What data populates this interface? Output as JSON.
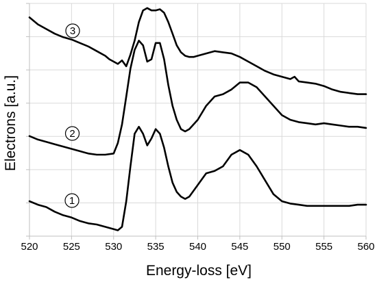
{
  "chart_data": {
    "type": "line",
    "xlabel": "Energy-loss [eV]",
    "ylabel": "Electrons [a.u.]",
    "xlim": [
      520,
      560
    ],
    "xticks": [
      520,
      525,
      530,
      535,
      540,
      545,
      550,
      555,
      560
    ],
    "ylim": [
      0,
      10
    ],
    "y_tick_labels": "none",
    "grid": true,
    "legend": "none",
    "series": [
      {
        "marker": "③",
        "x": [
          520.0,
          521.0,
          522.0,
          523.0,
          524.0,
          525.0,
          526.0,
          527.0,
          528.0,
          529.0,
          529.5,
          530.0,
          530.5,
          531.0,
          531.5,
          532.0,
          532.5,
          533.0,
          533.5,
          534.0,
          534.5,
          535.0,
          535.5,
          536.0,
          536.5,
          537.0,
          537.5,
          538.0,
          538.5,
          539.0,
          539.5,
          540.0,
          541.0,
          542.0,
          543.0,
          544.0,
          545.0,
          546.0,
          547.0,
          548.0,
          549.0,
          550.0,
          551.0,
          551.5,
          552.0,
          553.0,
          554.0,
          555.0,
          556.0,
          557.0,
          558.0,
          559.0,
          560.0
        ],
        "y": [
          9.4,
          9.1,
          8.9,
          8.7,
          8.55,
          8.45,
          8.3,
          8.15,
          7.95,
          7.75,
          7.6,
          7.5,
          7.4,
          7.55,
          7.3,
          7.8,
          8.4,
          9.2,
          9.7,
          9.8,
          9.7,
          9.7,
          9.75,
          9.6,
          9.2,
          8.7,
          8.2,
          7.9,
          7.75,
          7.7,
          7.7,
          7.75,
          7.85,
          7.95,
          7.9,
          7.85,
          7.7,
          7.5,
          7.3,
          7.1,
          6.95,
          6.85,
          6.75,
          6.85,
          6.65,
          6.6,
          6.55,
          6.45,
          6.3,
          6.2,
          6.15,
          6.1,
          6.1
        ]
      },
      {
        "marker": "②",
        "x": [
          520.0,
          521.0,
          522.0,
          523.0,
          524.0,
          525.0,
          526.0,
          527.0,
          528.0,
          529.0,
          530.0,
          530.5,
          531.0,
          531.5,
          532.0,
          532.5,
          533.0,
          533.5,
          534.0,
          534.5,
          535.0,
          535.5,
          536.0,
          536.5,
          537.0,
          537.5,
          538.0,
          538.5,
          539.0,
          540.0,
          541.0,
          542.0,
          543.0,
          544.0,
          545.0,
          546.0,
          547.0,
          548.0,
          549.0,
          550.0,
          551.0,
          552.0,
          553.0,
          554.0,
          555.0,
          556.0,
          557.0,
          558.0,
          559.0,
          560.0
        ],
        "y": [
          4.3,
          4.15,
          4.05,
          3.95,
          3.85,
          3.75,
          3.65,
          3.55,
          3.5,
          3.5,
          3.55,
          4.0,
          4.8,
          6.0,
          7.2,
          8.0,
          8.4,
          8.2,
          7.5,
          7.6,
          8.3,
          8.3,
          7.6,
          6.5,
          5.6,
          5.0,
          4.6,
          4.5,
          4.6,
          5.0,
          5.6,
          6.0,
          6.1,
          6.3,
          6.6,
          6.6,
          6.4,
          6.0,
          5.6,
          5.2,
          5.0,
          4.9,
          4.85,
          4.8,
          4.85,
          4.8,
          4.75,
          4.7,
          4.7,
          4.65
        ]
      },
      {
        "marker": "①",
        "x": [
          520.0,
          521.0,
          522.0,
          523.0,
          524.0,
          525.0,
          526.0,
          527.0,
          528.0,
          529.0,
          530.0,
          530.5,
          531.0,
          531.5,
          532.0,
          532.5,
          533.0,
          533.5,
          534.0,
          534.5,
          535.0,
          535.5,
          536.0,
          536.5,
          537.0,
          537.5,
          538.0,
          538.5,
          539.0,
          540.0,
          541.0,
          542.0,
          543.0,
          544.0,
          545.0,
          546.0,
          547.0,
          548.0,
          549.0,
          550.0,
          551.0,
          552.0,
          553.0,
          554.0,
          555.0,
          556.0,
          557.0,
          558.0,
          559.0,
          560.0
        ],
        "y": [
          1.5,
          1.35,
          1.25,
          1.05,
          0.9,
          0.8,
          0.65,
          0.55,
          0.5,
          0.4,
          0.3,
          0.25,
          0.4,
          1.5,
          3.0,
          4.4,
          4.7,
          4.4,
          3.9,
          4.2,
          4.6,
          4.4,
          3.8,
          3.0,
          2.3,
          1.9,
          1.7,
          1.6,
          1.7,
          2.2,
          2.7,
          2.8,
          3.0,
          3.5,
          3.7,
          3.5,
          3.0,
          2.4,
          1.8,
          1.5,
          1.4,
          1.35,
          1.3,
          1.3,
          1.3,
          1.3,
          1.3,
          1.3,
          1.35,
          1.35
        ]
      }
    ]
  }
}
